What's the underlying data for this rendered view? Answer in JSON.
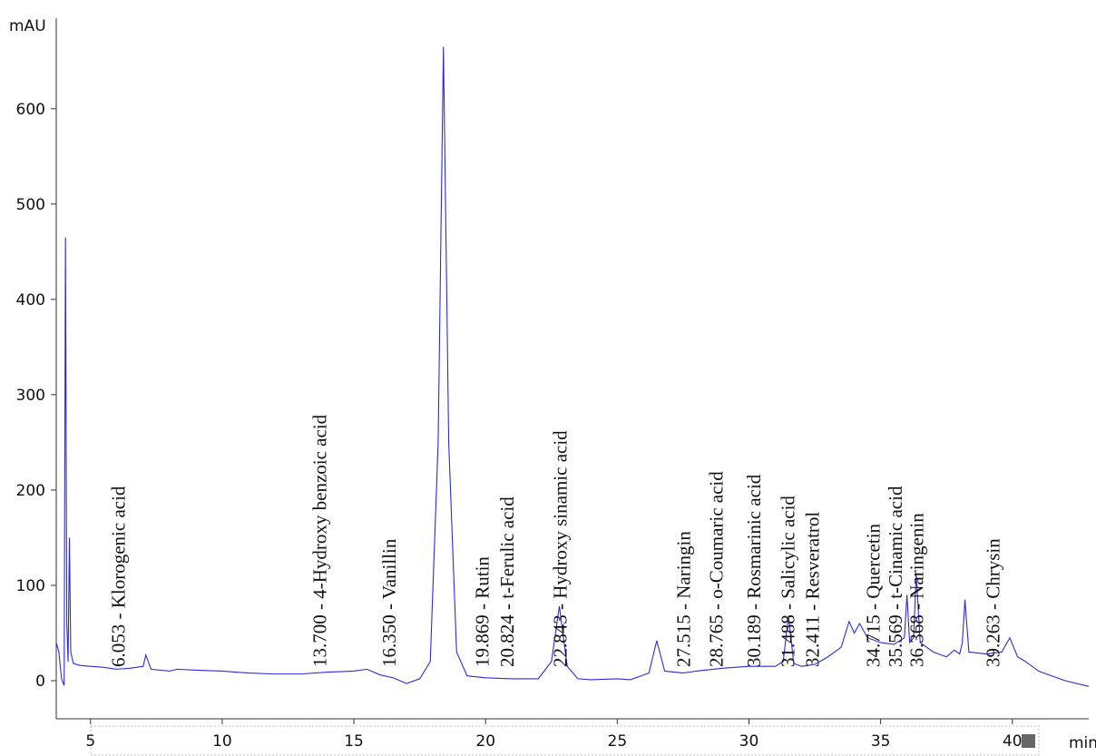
{
  "chart_data": {
    "type": "line",
    "y_label": "mAU",
    "x_label": "min",
    "xlim": [
      3.7,
      42.9
    ],
    "ylim": [
      -40,
      695
    ],
    "xticks": [
      5,
      10,
      15,
      20,
      25,
      30,
      35,
      40
    ],
    "yticks": [
      0,
      100,
      200,
      300,
      400,
      500,
      600
    ],
    "x": [
      3.7,
      3.8,
      3.9,
      4.0,
      4.05,
      4.1,
      4.15,
      4.2,
      4.25,
      4.35,
      4.6,
      5.0,
      5.5,
      6.0,
      6.5,
      7.0,
      7.1,
      7.3,
      8.0,
      8.3,
      9.0,
      10.0,
      11.0,
      12.0,
      13.0,
      14.0,
      15.0,
      15.5,
      16.0,
      16.5,
      17.0,
      17.5,
      17.9,
      18.2,
      18.4,
      18.6,
      18.9,
      19.3,
      20.0,
      21.0,
      22.0,
      22.5,
      22.8,
      23.1,
      23.5,
      24.0,
      25.0,
      25.5,
      26.2,
      26.5,
      26.8,
      27.5,
      28.0,
      29.0,
      30.0,
      31.0,
      31.3,
      31.5,
      31.7,
      32.0,
      32.5,
      33.0,
      33.5,
      33.8,
      34.0,
      34.2,
      34.5,
      35.0,
      35.5,
      35.9,
      36.0,
      36.1,
      36.25,
      36.35,
      36.5,
      37.0,
      37.5,
      37.8,
      38.0,
      38.1,
      38.2,
      38.35,
      39.0,
      39.6,
      39.9,
      40.2,
      40.5,
      41.0,
      42.0,
      42.9
    ],
    "series": [
      {
        "color": "#2b2bdc",
        "values": [
          40,
          30,
          2,
          -5,
          465,
          60,
          20,
          150,
          30,
          18,
          16,
          15,
          14,
          12,
          13,
          15,
          27,
          12,
          10,
          12,
          11,
          10,
          8,
          7,
          7,
          9,
          10,
          12,
          6,
          3,
          -3,
          2,
          20,
          250,
          665,
          250,
          30,
          5,
          3,
          2,
          2,
          20,
          78,
          15,
          2,
          1,
          2,
          1,
          8,
          42,
          10,
          8,
          10,
          13,
          15,
          15,
          20,
          68,
          18,
          15,
          17,
          25,
          35,
          62,
          50,
          60,
          45,
          40,
          38,
          45,
          90,
          40,
          45,
          112,
          40,
          30,
          25,
          32,
          28,
          40,
          85,
          30,
          28,
          30,
          45,
          25,
          20,
          10,
          0,
          -6
        ]
      }
    ],
    "peaks": [
      {
        "x": 6.053,
        "label": "6.053 -  Klorogenic acid"
      },
      {
        "x": 13.7,
        "label": "13.700 -  4-Hydroxy benzoic acid"
      },
      {
        "x": 16.35,
        "label": "16.350 -  Vanillin"
      },
      {
        "x": 19.869,
        "label": "19.869 -  Rutin"
      },
      {
        "x": 20.824,
        "label": "20.824 -  t-Ferulic acid"
      },
      {
        "x": 22.843,
        "label": "22.843 -  Hydroxy sinamic acid"
      },
      {
        "x": 27.515,
        "label": "27.515 -  Naringin"
      },
      {
        "x": 28.765,
        "label": "28.765 -  o-Coumaric acid"
      },
      {
        "x": 30.189,
        "label": "30.189 -  Rosmarinic acid"
      },
      {
        "x": 31.488,
        "label": "31.488 -  Salicylic acid"
      },
      {
        "x": 32.411,
        "label": "32.411 -  Resveratrol"
      },
      {
        "x": 34.715,
        "label": "34.715 -  Quercetin"
      },
      {
        "x": 35.569,
        "label": "35.569 -  t-Cinamic acid"
      },
      {
        "x": 36.368,
        "label": "36.368 -  Naringenin"
      },
      {
        "x": 39.263,
        "label": "39.263 -  Chrysin"
      }
    ]
  }
}
